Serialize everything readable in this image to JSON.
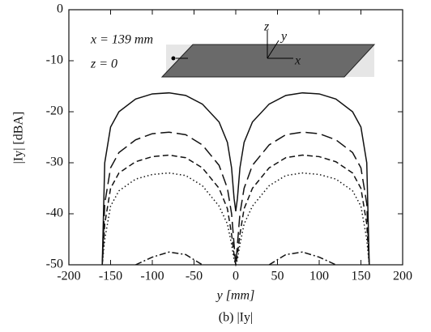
{
  "chart_data": {
    "type": "line",
    "xlabel": "y [mm]",
    "ylabel": "|Iy| [dBA]",
    "caption": "(b) |Iy|",
    "annotations": [
      "x = 139 mm",
      "z = 0",
      "z",
      "y",
      "x"
    ],
    "x": [
      -160,
      -157,
      -150,
      -140,
      -120,
      -100,
      -80,
      -60,
      -40,
      -20,
      -10,
      -5,
      -2,
      0,
      2,
      5,
      10,
      20,
      40,
      60,
      80,
      100,
      120,
      140,
      150,
      157,
      160
    ],
    "series": [
      {
        "color": "#111111",
        "dash": "solid",
        "values": [
          -50,
          -30,
          -23,
          -20,
          -17.5,
          -16.5,
          -16.3,
          -16.8,
          -18.5,
          -22,
          -26,
          -31,
          -37,
          -39.5,
          -37,
          -31,
          -26,
          -22,
          -18.5,
          -16.8,
          -16.3,
          -16.5,
          -17.5,
          -20,
          -23,
          -30,
          -50
        ]
      },
      {
        "color": "#111111",
        "dash": "long-dash",
        "values": [
          -50,
          -38,
          -31,
          -28,
          -25.5,
          -24.3,
          -24,
          -24.5,
          -26.5,
          -30.5,
          -35,
          -40,
          -46,
          -50,
          -46,
          -40,
          -35,
          -30.5,
          -26.5,
          -24.5,
          -24,
          -24.3,
          -25.5,
          -28,
          -31,
          -38,
          -50
        ]
      },
      {
        "color": "#111111",
        "dash": "short-dash",
        "values": [
          -50,
          -42,
          -35,
          -32,
          -29.8,
          -28.8,
          -28.5,
          -29,
          -31,
          -35,
          -39,
          -44,
          -48,
          -50,
          -48,
          -44,
          -39,
          -35,
          -31,
          -29,
          -28.5,
          -28.8,
          -29.8,
          -32,
          -35,
          -42,
          -50
        ]
      },
      {
        "color": "#111111",
        "dash": "dotted",
        "values": [
          -50,
          -45,
          -38.5,
          -35.5,
          -33.2,
          -32.3,
          -32,
          -32.5,
          -34.5,
          -38.5,
          -42,
          -46,
          -49,
          -50,
          -49,
          -46,
          -42,
          -38.5,
          -34.5,
          -32.5,
          -32,
          -32.3,
          -33.2,
          -35.5,
          -38.5,
          -45,
          -50
        ]
      },
      {
        "color": "#111111",
        "dash": "dash-dot",
        "values": [
          null,
          null,
          null,
          null,
          -50,
          -48.5,
          -47.5,
          -48,
          -50,
          null,
          null,
          null,
          null,
          null,
          null,
          null,
          null,
          null,
          -50,
          -48,
          -47.5,
          -48.5,
          -50,
          null,
          null,
          null,
          null
        ]
      }
    ],
    "xlim": [
      -200,
      200
    ],
    "ylim": [
      -50,
      0
    ],
    "xticks": [
      -200,
      -150,
      -100,
      -50,
      0,
      50,
      100,
      150,
      200
    ],
    "yticks": [
      0,
      -10,
      -20,
      -30,
      -40,
      -50
    ]
  }
}
